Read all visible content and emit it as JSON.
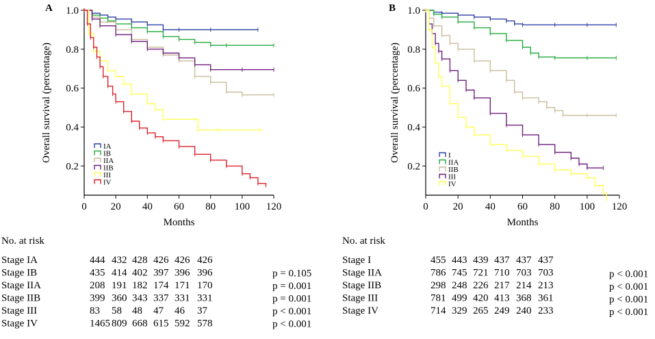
{
  "chart_data": [
    {
      "type": "line",
      "panel_label": "A",
      "xlabel": "Months",
      "ylabel": "Overall survival (percentage)",
      "xlim": [
        0,
        120
      ],
      "ylim": [
        0.05,
        1.0
      ],
      "x_ticks": [
        0,
        20,
        40,
        60,
        80,
        100,
        120
      ],
      "y_ticks": [
        0.2,
        0.4,
        0.6,
        0.8,
        1.0
      ],
      "y_tick_labels": [
        "0.2",
        "0.4",
        "0.6",
        "0.8",
        "1.0"
      ],
      "legend_position": "bottom-left",
      "series": [
        {
          "name": "IA",
          "color": "#2b3fa6",
          "points": [
            [
              0,
              1.0
            ],
            [
              5,
              0.985
            ],
            [
              10,
              0.975
            ],
            [
              15,
              0.965
            ],
            [
              20,
              0.955
            ],
            [
              30,
              0.94
            ],
            [
              40,
              0.925
            ],
            [
              50,
              0.9
            ],
            [
              60,
              0.9
            ],
            [
              80,
              0.9
            ],
            [
              110,
              0.9
            ]
          ]
        },
        {
          "name": "IB",
          "color": "#22aa3a",
          "points": [
            [
              0,
              1.0
            ],
            [
              5,
              0.975
            ],
            [
              10,
              0.96
            ],
            [
              15,
              0.945
            ],
            [
              20,
              0.93
            ],
            [
              30,
              0.91
            ],
            [
              40,
              0.89
            ],
            [
              50,
              0.865
            ],
            [
              60,
              0.85
            ],
            [
              70,
              0.835
            ],
            [
              80,
              0.82
            ],
            [
              90,
              0.82
            ],
            [
              120,
              0.82
            ]
          ]
        },
        {
          "name": "IIA",
          "color": "#c9bc9a",
          "points": [
            [
              0,
              1.0
            ],
            [
              5,
              0.965
            ],
            [
              10,
              0.94
            ],
            [
              20,
              0.9
            ],
            [
              30,
              0.85
            ],
            [
              40,
              0.81
            ],
            [
              50,
              0.77
            ],
            [
              60,
              0.74
            ],
            [
              70,
              0.66
            ],
            [
              80,
              0.63
            ],
            [
              90,
              0.58
            ],
            [
              100,
              0.565
            ],
            [
              120,
              0.565
            ]
          ]
        },
        {
          "name": "IIB",
          "color": "#6e1f7d",
          "points": [
            [
              0,
              1.0
            ],
            [
              5,
              0.955
            ],
            [
              10,
              0.92
            ],
            [
              20,
              0.875
            ],
            [
              30,
              0.84
            ],
            [
              40,
              0.8
            ],
            [
              50,
              0.78
            ],
            [
              60,
              0.755
            ],
            [
              70,
              0.72
            ],
            [
              80,
              0.695
            ],
            [
              100,
              0.695
            ],
            [
              120,
              0.695
            ]
          ]
        },
        {
          "name": "III",
          "color": "#ffff55",
          "points": [
            [
              0,
              1.0
            ],
            [
              3,
              0.88
            ],
            [
              6,
              0.79
            ],
            [
              10,
              0.74
            ],
            [
              15,
              0.69
            ],
            [
              20,
              0.66
            ],
            [
              25,
              0.62
            ],
            [
              30,
              0.57
            ],
            [
              40,
              0.52
            ],
            [
              45,
              0.49
            ],
            [
              50,
              0.44
            ],
            [
              70,
              0.44
            ],
            [
              72,
              0.385
            ],
            [
              85,
              0.385
            ],
            [
              112,
              0.385
            ]
          ]
        },
        {
          "name": "IV",
          "color": "#dd1f26",
          "points": [
            [
              0,
              1.0
            ],
            [
              2,
              0.93
            ],
            [
              4,
              0.86
            ],
            [
              6,
              0.81
            ],
            [
              8,
              0.76
            ],
            [
              10,
              0.71
            ],
            [
              12,
              0.66
            ],
            [
              15,
              0.61
            ],
            [
              18,
              0.57
            ],
            [
              20,
              0.53
            ],
            [
              25,
              0.48
            ],
            [
              30,
              0.43
            ],
            [
              35,
              0.395
            ],
            [
              40,
              0.37
            ],
            [
              45,
              0.35
            ],
            [
              50,
              0.33
            ],
            [
              60,
              0.3
            ],
            [
              70,
              0.26
            ],
            [
              80,
              0.23
            ],
            [
              90,
              0.2
            ],
            [
              100,
              0.16
            ],
            [
              105,
              0.14
            ],
            [
              110,
              0.11
            ],
            [
              115,
              0.1
            ]
          ]
        }
      ],
      "risk_table": {
        "title": "No. at risk",
        "rows": [
          {
            "label": "Stage IA",
            "values": [
              "444",
              "432",
              "428",
              "426",
              "426",
              "426"
            ],
            "p": ""
          },
          {
            "label": "Stage IB",
            "values": [
              "435",
              "414",
              "402",
              "397",
              "396",
              "396"
            ],
            "p": "p = 0.105"
          },
          {
            "label": "Stage IIA",
            "values": [
              "208",
              "191",
              "182",
              "174",
              "171",
              "170"
            ],
            "p": "p = 0.001"
          },
          {
            "label": "Stage IIB",
            "values": [
              "399",
              "360",
              "343",
              "337",
              "331",
              "331"
            ],
            "p": "p = 0.001"
          },
          {
            "label": "Stage III",
            "values": [
              "83",
              "58",
              "48",
              "47",
              "46",
              "37"
            ],
            "p": "p < 0.001"
          },
          {
            "label": "Stage IV",
            "values": [
              "1465",
              "809",
              "668",
              "615",
              "592",
              "578"
            ],
            "p": "p < 0.001"
          }
        ]
      }
    },
    {
      "type": "line",
      "panel_label": "B",
      "xlabel": "Months",
      "ylabel": "Overall survival (percentage)",
      "xlim": [
        0,
        120
      ],
      "ylim": [
        0.05,
        1.0
      ],
      "x_ticks": [
        0,
        20,
        40,
        60,
        80,
        100,
        120
      ],
      "y_ticks": [
        0.2,
        0.4,
        0.6,
        0.8,
        1.0
      ],
      "y_tick_labels": [
        "0.2",
        "0.4",
        "0.6",
        "0.8",
        "1.0"
      ],
      "legend_position": "bottom-left",
      "series": [
        {
          "name": "I",
          "color": "#2b3fa6",
          "points": [
            [
              0,
              1.0
            ],
            [
              5,
              0.99
            ],
            [
              10,
              0.985
            ],
            [
              20,
              0.975
            ],
            [
              30,
              0.965
            ],
            [
              40,
              0.955
            ],
            [
              50,
              0.945
            ],
            [
              55,
              0.93
            ],
            [
              60,
              0.925
            ],
            [
              80,
              0.925
            ],
            [
              100,
              0.925
            ],
            [
              118,
              0.925
            ]
          ]
        },
        {
          "name": "IIA",
          "color": "#22aa3a",
          "points": [
            [
              0,
              1.0
            ],
            [
              5,
              0.98
            ],
            [
              10,
              0.965
            ],
            [
              20,
              0.94
            ],
            [
              30,
              0.91
            ],
            [
              40,
              0.88
            ],
            [
              50,
              0.845
            ],
            [
              60,
              0.81
            ],
            [
              65,
              0.78
            ],
            [
              70,
              0.76
            ],
            [
              80,
              0.755
            ],
            [
              100,
              0.755
            ],
            [
              118,
              0.755
            ]
          ]
        },
        {
          "name": "IIB",
          "color": "#c9bc9a",
          "points": [
            [
              0,
              1.0
            ],
            [
              2,
              0.96
            ],
            [
              5,
              0.92
            ],
            [
              10,
              0.87
            ],
            [
              15,
              0.83
            ],
            [
              20,
              0.8
            ],
            [
              30,
              0.74
            ],
            [
              40,
              0.69
            ],
            [
              50,
              0.64
            ],
            [
              55,
              0.58
            ],
            [
              60,
              0.55
            ],
            [
              70,
              0.53
            ],
            [
              75,
              0.5
            ],
            [
              80,
              0.485
            ],
            [
              85,
              0.46
            ],
            [
              100,
              0.46
            ],
            [
              118,
              0.46
            ]
          ]
        },
        {
          "name": "III",
          "color": "#6e1f7d",
          "points": [
            [
              0,
              1.0
            ],
            [
              2,
              0.93
            ],
            [
              4,
              0.88
            ],
            [
              6,
              0.83
            ],
            [
              8,
              0.79
            ],
            [
              10,
              0.75
            ],
            [
              15,
              0.69
            ],
            [
              20,
              0.64
            ],
            [
              25,
              0.59
            ],
            [
              30,
              0.55
            ],
            [
              40,
              0.47
            ],
            [
              50,
              0.41
            ],
            [
              60,
              0.36
            ],
            [
              70,
              0.31
            ],
            [
              80,
              0.27
            ],
            [
              90,
              0.24
            ],
            [
              95,
              0.21
            ],
            [
              100,
              0.19
            ],
            [
              110,
              0.19
            ]
          ]
        },
        {
          "name": "IV",
          "color": "#ffff55",
          "points": [
            [
              0,
              1.0
            ],
            [
              2,
              0.9
            ],
            [
              4,
              0.81
            ],
            [
              6,
              0.73
            ],
            [
              8,
              0.66
            ],
            [
              10,
              0.61
            ],
            [
              15,
              0.52
            ],
            [
              20,
              0.45
            ],
            [
              25,
              0.4
            ],
            [
              30,
              0.36
            ],
            [
              40,
              0.31
            ],
            [
              50,
              0.28
            ],
            [
              60,
              0.25
            ],
            [
              70,
              0.21
            ],
            [
              80,
              0.18
            ],
            [
              90,
              0.16
            ],
            [
              100,
              0.14
            ],
            [
              105,
              0.1
            ],
            [
              110,
              0.06
            ],
            [
              112,
              0.03
            ]
          ]
        }
      ],
      "risk_table": {
        "title": "No. at risk",
        "rows": [
          {
            "label": "Stage I",
            "values": [
              "455",
              "443",
              "439",
              "437",
              "437",
              "437"
            ],
            "p": ""
          },
          {
            "label": "Stage IIA",
            "values": [
              "786",
              "745",
              "721",
              "710",
              "703",
              "703"
            ],
            "p": "p < 0.001"
          },
          {
            "label": "Stage IIB",
            "values": [
              "298",
              "248",
              "226",
              "217",
              "214",
              "213"
            ],
            "p": "p < 0.001"
          },
          {
            "label": "Stage III",
            "values": [
              "781",
              "499",
              "420",
              "413",
              "368",
              "361"
            ],
            "p": "p < 0.001"
          },
          {
            "label": "Stage IV",
            "values": [
              "714",
              "329",
              "265",
              "249",
              "240",
              "233"
            ],
            "p": "p < 0.001"
          }
        ]
      }
    }
  ]
}
